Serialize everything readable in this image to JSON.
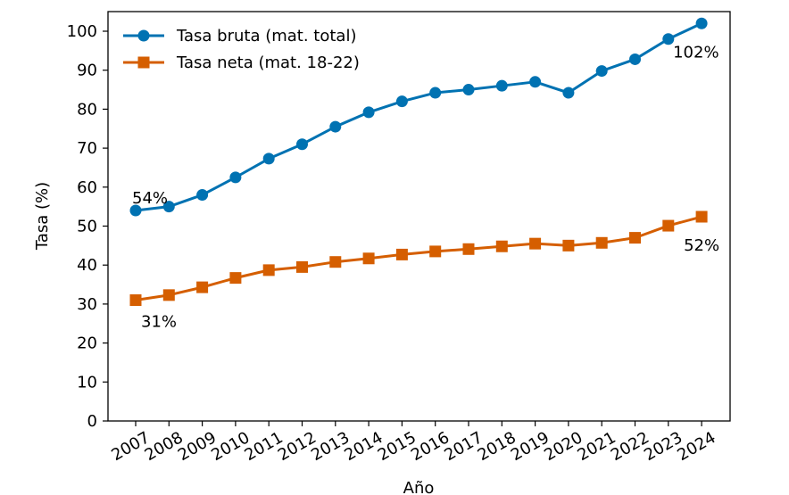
{
  "chart_data": {
    "type": "line",
    "title": "",
    "xlabel": "Año",
    "ylabel": "Tasa (%)",
    "ylim": [
      0,
      105
    ],
    "yticks": [
      0,
      10,
      20,
      30,
      40,
      50,
      60,
      70,
      80,
      90,
      100
    ],
    "grid": false,
    "legend_position": "top-left",
    "categories": [
      "2007",
      "2008",
      "2009",
      "2010",
      "2011",
      "2012",
      "2013",
      "2014",
      "2015",
      "2016",
      "2017",
      "2018",
      "2019",
      "2020",
      "2021",
      "2022",
      "2023",
      "2024"
    ],
    "series": [
      {
        "name": "Tasa bruta (mat. total)",
        "color": "#0072B2",
        "marker": "circle",
        "values": [
          54,
          55,
          58,
          62.5,
          67.3,
          71,
          75.5,
          79.2,
          82,
          84.2,
          85,
          86,
          87,
          84.2,
          89.8,
          92.8,
          98,
          102
        ]
      },
      {
        "name": "Tasa neta (mat. 18-22)",
        "color": "#D55E00",
        "marker": "square",
        "values": [
          31,
          32.3,
          34.3,
          36.7,
          38.7,
          39.5,
          40.8,
          41.7,
          42.7,
          43.5,
          44.1,
          44.8,
          45.5,
          45,
          45.7,
          47,
          50.1,
          52.4
        ]
      }
    ],
    "annotations": [
      {
        "text": "54%",
        "series": 0,
        "index": 0
      },
      {
        "text": "102%",
        "series": 0,
        "index": 17
      },
      {
        "text": "31%",
        "series": 1,
        "index": 0
      },
      {
        "text": "52%",
        "series": 1,
        "index": 17
      }
    ]
  }
}
